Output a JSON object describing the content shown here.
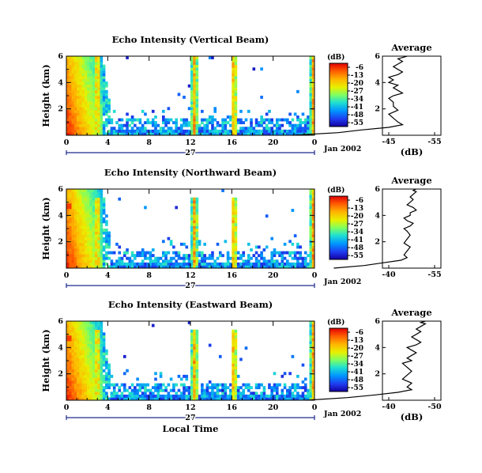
{
  "chart_data": [
    {
      "type": "heatmap",
      "title": "Echo Intensity (Vertical Beam)",
      "ylabel": "Height (km)",
      "xlabel": "",
      "date_label": "Jan 2002",
      "day_label": "27",
      "x_ticks": [
        "0",
        "4",
        "8",
        "12",
        "16",
        "20",
        "0"
      ],
      "y_ticks": [
        "2",
        "4",
        "6"
      ],
      "xlim": [
        0,
        24
      ],
      "ylim": [
        0,
        6
      ],
      "colorbar": {
        "unit": "(dB)",
        "ticks": [
          "-6",
          "-13",
          "-20",
          "-27",
          "-34",
          "-41",
          "-48",
          "-55"
        ]
      },
      "avg_profile": {
        "title": "Average",
        "xlabel": "(dB)",
        "x_ticks": [
          "-45",
          "-55"
        ],
        "y_ticks": [
          "2",
          "4",
          "6"
        ],
        "x": [
          -24,
          -34,
          -39,
          -45,
          -48,
          -47,
          -46,
          -45,
          -47,
          -46,
          -46,
          -45,
          -46,
          -48,
          -47,
          -46,
          -47,
          -45,
          -46,
          -45,
          -47,
          -48,
          -47,
          -46,
          -47,
          -48,
          -47,
          -48,
          -49
        ],
        "y": [
          0.0,
          0.2,
          0.4,
          0.6,
          0.8,
          1.0,
          1.3,
          1.6,
          1.9,
          2.2,
          2.5,
          2.8,
          3.0,
          3.2,
          3.4,
          3.6,
          3.8,
          4.0,
          4.2,
          4.4,
          4.6,
          4.8,
          5.0,
          5.2,
          5.4,
          5.6,
          5.8,
          5.9,
          6.0
        ]
      }
    },
    {
      "type": "heatmap",
      "title": "Echo Intensity (Northward Beam)",
      "ylabel": "Height (km)",
      "xlabel": "",
      "date_label": "Jan 2002",
      "day_label": "27",
      "x_ticks": [
        "0",
        "4",
        "8",
        "12",
        "16",
        "20",
        "0"
      ],
      "y_ticks": [
        "2",
        "4",
        "6"
      ],
      "xlim": [
        0,
        24
      ],
      "ylim": [
        0,
        6
      ],
      "colorbar": {
        "unit": "(dB)",
        "ticks": [
          "-6",
          "-13",
          "-20",
          "-27",
          "-34",
          "-41",
          "-48",
          "-55"
        ]
      },
      "avg_profile": {
        "title": "Average",
        "xlabel": "",
        "x_ticks": [
          "-40",
          "-55"
        ],
        "y_ticks": [
          "2",
          "4",
          "6"
        ],
        "x": [
          -22,
          -32,
          -38,
          -44,
          -46,
          -45,
          -46,
          -47,
          -45,
          -46,
          -47,
          -46,
          -45,
          -47,
          -48,
          -46,
          -45,
          -47,
          -47,
          -49,
          -48,
          -46,
          -47,
          -48,
          -47,
          -48,
          -49,
          -48,
          -49
        ],
        "y": [
          0.0,
          0.2,
          0.4,
          0.6,
          0.8,
          1.0,
          1.3,
          1.6,
          1.9,
          2.2,
          2.5,
          2.8,
          3.0,
          3.2,
          3.4,
          3.6,
          3.8,
          4.0,
          4.2,
          4.4,
          4.6,
          4.8,
          5.0,
          5.2,
          5.4,
          5.6,
          5.8,
          5.9,
          6.0
        ]
      }
    },
    {
      "type": "heatmap",
      "title": "Echo Intensity (Eastward Beam)",
      "ylabel": "Height (km)",
      "xlabel": "Local Time",
      "date_label": "Jan 2002",
      "day_label": "27",
      "x_ticks": [
        "0",
        "4",
        "8",
        "12",
        "16",
        "20",
        "0"
      ],
      "y_ticks": [
        "2",
        "4",
        "6"
      ],
      "xlim": [
        0,
        24
      ],
      "ylim": [
        0,
        6
      ],
      "colorbar": {
        "unit": "(dB)",
        "ticks": [
          "-6",
          "-13",
          "-20",
          "-27",
          "-34",
          "-41",
          "-48",
          "-55"
        ]
      },
      "avg_profile": {
        "title": "Average",
        "xlabel": "(dB)",
        "x_ticks": [
          "-40",
          "-50"
        ],
        "y_ticks": [
          "2",
          "4",
          "6"
        ],
        "x": [
          -22,
          -31,
          -37,
          -42,
          -45,
          -44,
          -45,
          -43,
          -44,
          -45,
          -44,
          -43,
          -45,
          -44,
          -45,
          -46,
          -45,
          -44,
          -46,
          -47,
          -46,
          -45,
          -46,
          -47,
          -46,
          -47,
          -48,
          -47,
          -48
        ],
        "y": [
          0.0,
          0.2,
          0.4,
          0.6,
          0.8,
          1.0,
          1.3,
          1.6,
          1.9,
          2.2,
          2.5,
          2.8,
          3.0,
          3.2,
          3.4,
          3.6,
          3.8,
          4.0,
          4.2,
          4.4,
          4.6,
          4.8,
          5.0,
          5.2,
          5.4,
          5.6,
          5.8,
          5.9,
          6.0
        ]
      }
    }
  ]
}
